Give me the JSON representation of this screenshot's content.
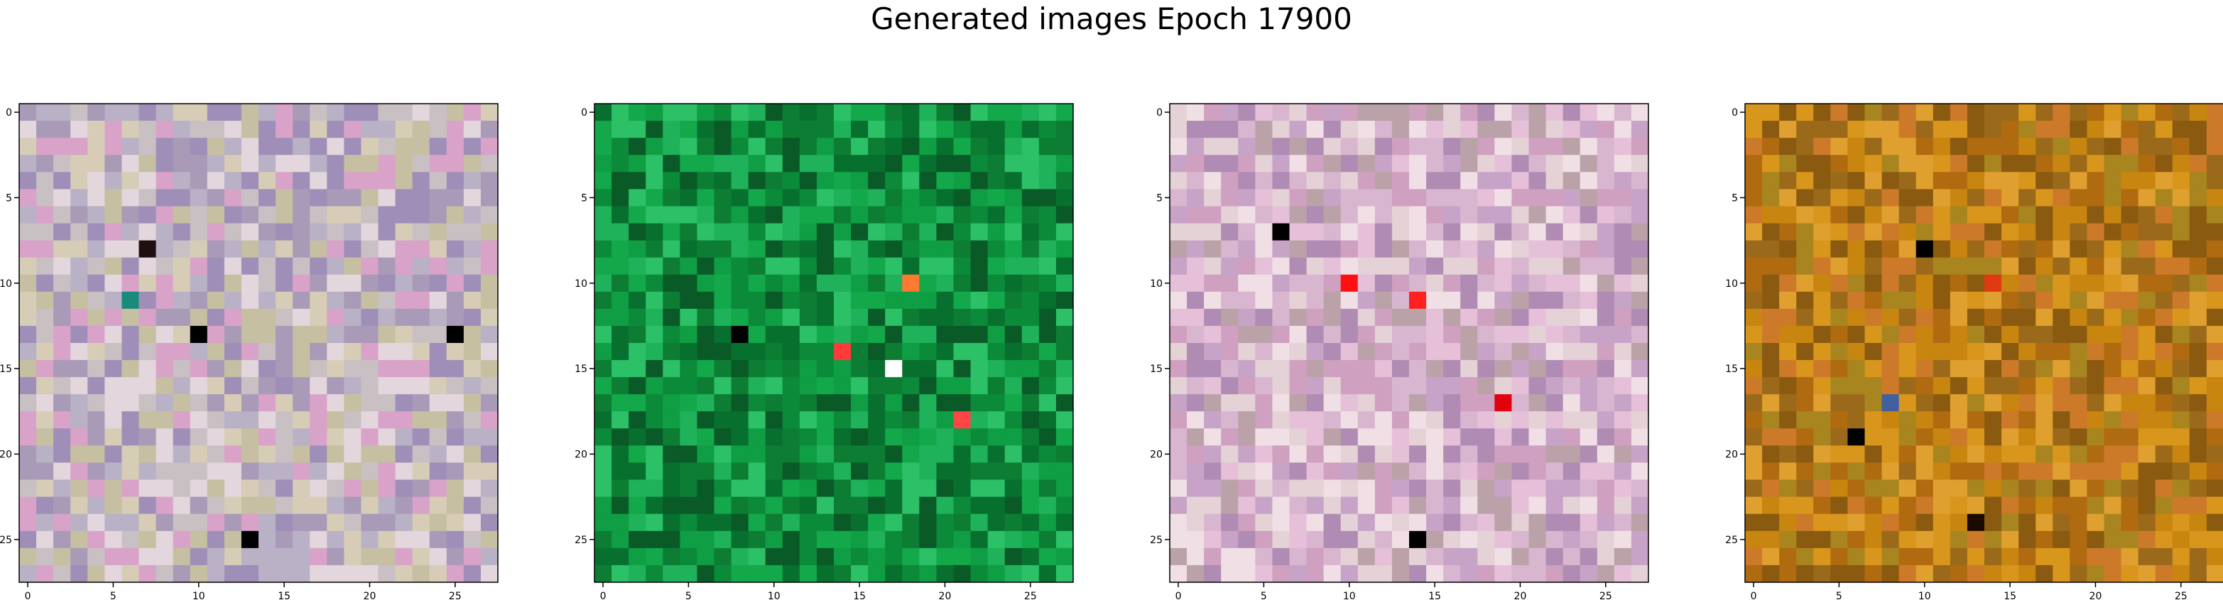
{
  "title": "Generated images Epoch 17900",
  "chart_data": [
    {
      "type": "heatmap",
      "rows": 28,
      "cols": 28,
      "xlim": [
        -0.5,
        27.5
      ],
      "ylim": [
        27.5,
        -0.5
      ],
      "xticks": [
        0,
        5,
        10,
        15,
        20,
        25
      ],
      "yticks": [
        0,
        5,
        10,
        15,
        20,
        25
      ],
      "palette": [
        "#c9c0c4",
        "#b9b1c5",
        "#d7cdb6",
        "#a99ab7",
        "#e3d6dc",
        "#9f8fb8",
        "#c6bfa2",
        "#d9a2c8"
      ],
      "accents": [
        {
          "row": 13,
          "col": 10,
          "color": "#000000"
        },
        {
          "row": 13,
          "col": 25,
          "color": "#000000"
        },
        {
          "row": 25,
          "col": 13,
          "color": "#000000"
        },
        {
          "row": 8,
          "col": 7,
          "color": "#1f0f10"
        },
        {
          "row": 11,
          "col": 6,
          "color": "#1a8a7a"
        }
      ]
    },
    {
      "type": "heatmap",
      "rows": 28,
      "cols": 28,
      "xlim": [
        -0.5,
        27.5
      ],
      "ylim": [
        27.5,
        -0.5
      ],
      "xticks": [
        0,
        5,
        10,
        15,
        20,
        25
      ],
      "yticks": [
        0,
        5,
        10,
        15,
        20,
        25
      ],
      "palette": [
        "#0b8a3a",
        "#0f9e43",
        "#07702f",
        "#13a84a",
        "#095a27",
        "#1fb25a",
        "#0d7d34",
        "#2cc067"
      ],
      "accents": [
        {
          "row": 13,
          "col": 8,
          "color": "#000000"
        },
        {
          "row": 14,
          "col": 14,
          "color": "#ff3a3a"
        },
        {
          "row": 10,
          "col": 18,
          "color": "#ff7a30"
        },
        {
          "row": 15,
          "col": 17,
          "color": "#ffffff"
        },
        {
          "row": 18,
          "col": 21,
          "color": "#ff4545"
        }
      ]
    },
    {
      "type": "heatmap",
      "rows": 28,
      "cols": 28,
      "xlim": [
        -0.5,
        27.5
      ],
      "ylim": [
        27.5,
        -0.5
      ],
      "xticks": [
        0,
        5,
        10,
        15,
        20,
        25
      ],
      "yticks": [
        0,
        5,
        10,
        15,
        20,
        25
      ],
      "palette": [
        "#d9b6cf",
        "#c7a3c8",
        "#e4d2d6",
        "#b08bb4",
        "#f0e0e5",
        "#cfa0bf",
        "#e6c0d8",
        "#bba2a8"
      ],
      "accents": [
        {
          "row": 25,
          "col": 14,
          "color": "#000000"
        },
        {
          "row": 7,
          "col": 6,
          "color": "#000000"
        },
        {
          "row": 10,
          "col": 10,
          "color": "#ff1010"
        },
        {
          "row": 11,
          "col": 14,
          "color": "#ff2020"
        },
        {
          "row": 17,
          "col": 19,
          "color": "#e00010"
        }
      ]
    },
    {
      "type": "heatmap",
      "rows": 28,
      "cols": 28,
      "xlim": [
        -0.5,
        27.5
      ],
      "ylim": [
        27.5,
        -0.5
      ],
      "xticks": [
        0,
        5,
        10,
        15,
        20,
        25
      ],
      "yticks": [
        0,
        5,
        10,
        15,
        20,
        25
      ],
      "palette": [
        "#c8850f",
        "#b06a10",
        "#d9961c",
        "#9a6a1a",
        "#cc7a2a",
        "#a8851f",
        "#e0a030",
        "#8a5a10"
      ],
      "accents": [
        {
          "row": 8,
          "col": 10,
          "color": "#000000"
        },
        {
          "row": 19,
          "col": 6,
          "color": "#000000"
        },
        {
          "row": 24,
          "col": 13,
          "color": "#1a0a00"
        },
        {
          "row": 10,
          "col": 14,
          "color": "#e03a10"
        },
        {
          "row": 17,
          "col": 8,
          "color": "#4060a0"
        }
      ]
    }
  ]
}
